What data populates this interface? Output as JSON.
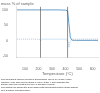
{
  "chart_data": {
    "type": "line",
    "title": "mass % of sample",
    "xlabel": "Temperature (°C)",
    "xlim": [
      40,
      640
    ],
    "xticks": [
      100,
      200,
      300,
      400,
      500,
      600
    ],
    "ylim": [
      -55,
      110
    ],
    "yticks": [
      -50,
      0,
      50,
      100
    ],
    "grid": false,
    "series": [
      {
        "color": "#4488bb",
        "line_style": "solid",
        "x": [
          40,
          100,
          150,
          200,
          205,
          215,
          220,
          250,
          300,
          350,
          400,
          415,
          425,
          435,
          445,
          455,
          465,
          480,
          500,
          550,
          600,
          640
        ],
        "values": [
          100,
          100,
          100,
          100,
          100,
          100,
          100,
          100,
          100,
          100,
          99,
          97,
          55,
          12,
          3,
          1,
          1,
          1,
          1,
          1,
          1,
          1
        ]
      },
      {
        "color": "#88bbdd",
        "line_style": "dotted",
        "x": [
          40,
          150,
          200,
          210,
          215,
          220,
          225,
          250,
          350,
          400,
          410,
          420,
          425,
          430,
          435,
          440,
          445,
          455,
          500,
          640
        ],
        "values": [
          5,
          5,
          5,
          3,
          0,
          3,
          5,
          5,
          5,
          5,
          4,
          -5,
          -22,
          -8,
          -2,
          1,
          4,
          5,
          5,
          5
        ]
      }
    ],
    "vlines": [
      {
        "x": 215,
        "color": "#444444"
      },
      {
        "x": 415,
        "color": "#444444"
      }
    ],
    "caption": [
      "The analysis is carried out with a temperature rise of 10°C/min, under",
      "nitrogen. (The drop for the mass % curve at the x-axis indicates the",
      "sample has been heated to 1000°C and then cooled)",
      "The dotted line shows the DTG (differential thermogravimetric mass change",
      "as a function of temperature)."
    ]
  }
}
